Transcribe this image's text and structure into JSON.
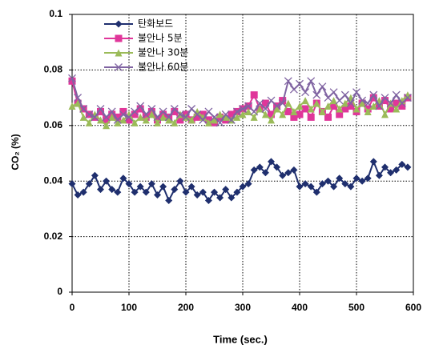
{
  "chart_data": {
    "type": "line",
    "xlabel": "Time (sec.)",
    "ylabel": "CO₂ (%)",
    "x": [
      0,
      10,
      20,
      30,
      40,
      50,
      60,
      70,
      80,
      90,
      100,
      110,
      120,
      130,
      140,
      150,
      160,
      170,
      180,
      190,
      200,
      210,
      220,
      230,
      240,
      250,
      260,
      270,
      280,
      290,
      300,
      310,
      320,
      330,
      340,
      350,
      360,
      370,
      380,
      390,
      400,
      410,
      420,
      430,
      440,
      450,
      460,
      470,
      480,
      490,
      500,
      510,
      520,
      530,
      540,
      550,
      560,
      570,
      580,
      590
    ],
    "series": [
      {
        "name": "탄화보드",
        "color": "#1f2f6e",
        "marker": "diamond",
        "values": [
          0.039,
          0.035,
          0.036,
          0.039,
          0.042,
          0.037,
          0.04,
          0.037,
          0.036,
          0.041,
          0.039,
          0.036,
          0.038,
          0.036,
          0.039,
          0.035,
          0.038,
          0.033,
          0.037,
          0.04,
          0.036,
          0.038,
          0.035,
          0.036,
          0.033,
          0.036,
          0.034,
          0.037,
          0.034,
          0.036,
          0.038,
          0.039,
          0.044,
          0.045,
          0.043,
          0.047,
          0.045,
          0.042,
          0.043,
          0.044,
          0.038,
          0.039,
          0.038,
          0.036,
          0.039,
          0.04,
          0.038,
          0.041,
          0.039,
          0.038,
          0.041,
          0.04,
          0.041,
          0.047,
          0.042,
          0.045,
          0.043,
          0.044,
          0.046,
          0.045
        ]
      },
      {
        "name": "불안나 5분",
        "color": "#e0369a",
        "marker": "square",
        "values": [
          0.076,
          0.068,
          0.066,
          0.064,
          0.063,
          0.065,
          0.062,
          0.064,
          0.063,
          0.065,
          0.062,
          0.064,
          0.066,
          0.063,
          0.065,
          0.062,
          0.064,
          0.063,
          0.065,
          0.062,
          0.064,
          0.062,
          0.063,
          0.064,
          0.062,
          0.061,
          0.063,
          0.062,
          0.064,
          0.065,
          0.066,
          0.067,
          0.071,
          0.066,
          0.068,
          0.064,
          0.067,
          0.069,
          0.065,
          0.063,
          0.064,
          0.066,
          0.063,
          0.068,
          0.065,
          0.063,
          0.067,
          0.064,
          0.066,
          0.067,
          0.065,
          0.068,
          0.066,
          0.07,
          0.067,
          0.069,
          0.066,
          0.068,
          0.067,
          0.07
        ]
      },
      {
        "name": "불안나 30분",
        "color": "#9bbb59",
        "marker": "triangle",
        "values": [
          0.067,
          0.068,
          0.063,
          0.061,
          0.064,
          0.062,
          0.06,
          0.063,
          0.061,
          0.062,
          0.064,
          0.061,
          0.063,
          0.062,
          0.064,
          0.061,
          0.063,
          0.062,
          0.061,
          0.064,
          0.063,
          0.062,
          0.065,
          0.063,
          0.061,
          0.062,
          0.064,
          0.063,
          0.062,
          0.063,
          0.064,
          0.065,
          0.063,
          0.066,
          0.064,
          0.062,
          0.066,
          0.064,
          0.068,
          0.065,
          0.067,
          0.069,
          0.066,
          0.068,
          0.065,
          0.067,
          0.069,
          0.066,
          0.068,
          0.07,
          0.066,
          0.068,
          0.065,
          0.067,
          0.069,
          0.064,
          0.068,
          0.066,
          0.069,
          0.071
        ]
      },
      {
        "name": "불안나 60분",
        "color": "#8064a2",
        "marker": "x",
        "values": [
          0.077,
          0.07,
          0.066,
          0.064,
          0.063,
          0.066,
          0.063,
          0.065,
          0.062,
          0.064,
          0.063,
          0.065,
          0.067,
          0.064,
          0.066,
          0.063,
          0.065,
          0.063,
          0.066,
          0.064,
          0.063,
          0.066,
          0.064,
          0.062,
          0.065,
          0.063,
          0.061,
          0.064,
          0.062,
          0.065,
          0.066,
          0.067,
          0.065,
          0.068,
          0.066,
          0.069,
          0.067,
          0.068,
          0.076,
          0.073,
          0.075,
          0.072,
          0.076,
          0.071,
          0.074,
          0.07,
          0.072,
          0.069,
          0.071,
          0.068,
          0.072,
          0.069,
          0.068,
          0.071,
          0.067,
          0.07,
          0.068,
          0.071,
          0.068,
          0.07
        ]
      }
    ],
    "xlim": [
      0,
      600
    ],
    "xticks": [
      0,
      100,
      200,
      300,
      400,
      500,
      600
    ],
    "ylim": [
      0,
      0.1
    ],
    "yticks": [
      0,
      0.02,
      0.04,
      0.06,
      0.08,
      0.1
    ],
    "grid": true,
    "legend": "upper left"
  }
}
